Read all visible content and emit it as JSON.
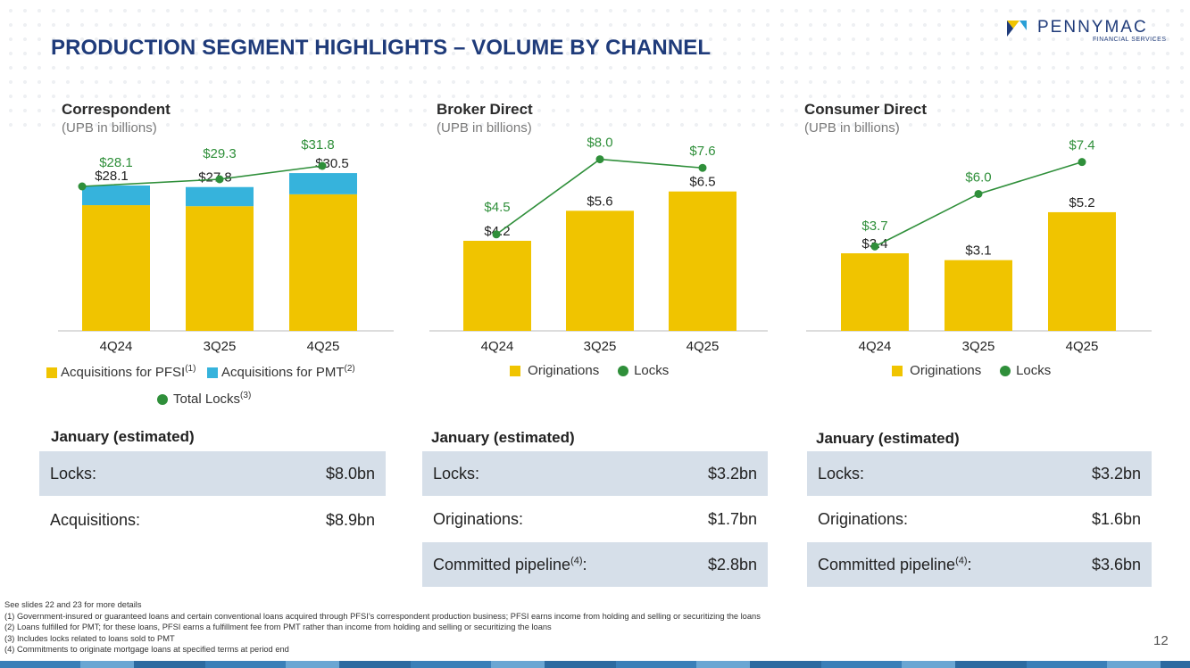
{
  "title": "PRODUCTION SEGMENT HIGHLIGHTS – VOLUME BY CHANNEL",
  "logo": {
    "name": "PENNYMAC",
    "sub": "FINANCIAL SERVICES"
  },
  "colors": {
    "originations": "#f0c400",
    "pmt": "#36b3dc",
    "locks": "#2f8f3a",
    "title": "#1f3b7a"
  },
  "chart_data": [
    {
      "type": "bar",
      "title": "Correspondent",
      "subtitle": "(UPB in billions)",
      "categories": [
        "4Q24",
        "3Q25",
        "4Q25"
      ],
      "series": [
        {
          "name": "Acquisitions for PFSI",
          "values": [
            24.3,
            24.1,
            26.4
          ]
        },
        {
          "name": "Acquisitions for PMT",
          "values": [
            3.8,
            3.7,
            4.1
          ]
        }
      ],
      "total_labels": [
        "$28.1",
        "$27.8",
        "$30.5"
      ],
      "locks": {
        "name": "Total Locks",
        "values": [
          28.1,
          29.3,
          31.8
        ],
        "labels": [
          "$28.1",
          "$29.3",
          "$31.8"
        ]
      },
      "ylim": [
        0,
        40
      ],
      "legend": [
        {
          "label": "Acquisitions for PFSI",
          "sup": "(1)"
        },
        {
          "label": "Acquisitions for PMT",
          "sup": "(2)"
        },
        {
          "label": "Total Locks",
          "sup": "(3)"
        }
      ]
    },
    {
      "type": "bar",
      "title": "Broker Direct",
      "subtitle": "(UPB in billions)",
      "categories": [
        "4Q24",
        "3Q25",
        "4Q25"
      ],
      "series": [
        {
          "name": "Originations",
          "values": [
            4.2,
            5.6,
            6.5
          ]
        }
      ],
      "total_labels": [
        "$4.2",
        "$5.6",
        "$6.5"
      ],
      "locks": {
        "name": "Locks",
        "values": [
          4.5,
          8.0,
          7.6
        ],
        "labels": [
          "$4.5",
          "$8.0",
          "$7.6"
        ]
      },
      "ylim": [
        0,
        10
      ],
      "legend": [
        {
          "label": "Originations",
          "sup": ""
        },
        {
          "label": "Locks",
          "sup": ""
        }
      ]
    },
    {
      "type": "bar",
      "title": "Consumer Direct",
      "subtitle": "(UPB in billions)",
      "categories": [
        "4Q24",
        "3Q25",
        "4Q25"
      ],
      "series": [
        {
          "name": "Originations",
          "values": [
            3.4,
            3.1,
            5.2
          ]
        }
      ],
      "total_labels": [
        "$3.4",
        "$3.1",
        "$5.2"
      ],
      "locks": {
        "name": "Locks",
        "values": [
          3.7,
          6.0,
          7.4
        ],
        "labels": [
          "$3.7",
          "$6.0",
          "$7.4"
        ]
      },
      "ylim": [
        0,
        10
      ],
      "legend": [
        {
          "label": "Originations",
          "sup": ""
        },
        {
          "label": "Locks",
          "sup": ""
        }
      ]
    }
  ],
  "january": [
    {
      "heading": "January (estimated)",
      "rows": [
        {
          "label": "Locks:",
          "sup": "",
          "value": "$8.0bn"
        },
        {
          "label": "Acquisitions:",
          "sup": "",
          "value": "$8.9bn"
        }
      ]
    },
    {
      "heading": "January (estimated)",
      "rows": [
        {
          "label": "Locks:",
          "sup": "",
          "value": "$3.2bn"
        },
        {
          "label": "Originations:",
          "sup": "",
          "value": "$1.7bn"
        },
        {
          "label": "Committed pipeline",
          "sup": "(4)",
          "suffix": ":",
          "value": "$2.8bn"
        }
      ]
    },
    {
      "heading": "January (estimated)",
      "rows": [
        {
          "label": "Locks:",
          "sup": "",
          "value": "$3.2bn"
        },
        {
          "label": "Originations:",
          "sup": "",
          "value": "$1.6bn"
        },
        {
          "label": "Committed pipeline",
          "sup": "(4)",
          "suffix": ":",
          "value": "$3.6bn"
        }
      ]
    }
  ],
  "footnotes": [
    "See slides 22 and 23 for more details",
    "(1) Government-insured or guaranteed loans and certain conventional loans acquired through PFSI’s correspondent production business; PFSI earns income from holding and selling or securitizing the loans",
    "(2) Loans fulfilled for PMT; for these loans, PFSI earns a fulfillment fee from PMT rather than income from holding and selling or securitizing the loans",
    "(3) Includes locks related to loans sold to PMT",
    "(4) Commitments to originate mortgage loans at specified terms at period end"
  ],
  "page_number": "12"
}
